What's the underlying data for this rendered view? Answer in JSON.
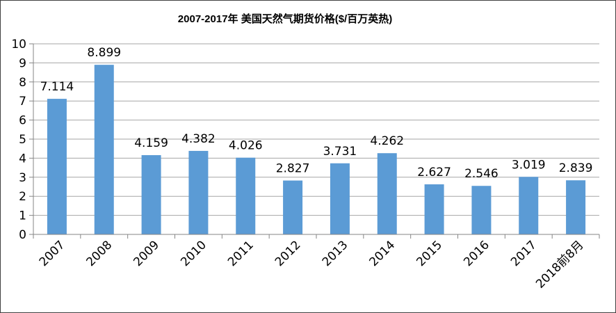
{
  "chart_data": {
    "type": "bar",
    "title": "2007-2017年 美国天然气期货价格($/百万英热)",
    "xlabel": "",
    "ylabel": "",
    "categories": [
      "2007",
      "2008",
      "2009",
      "2010",
      "2011",
      "2012",
      "2013",
      "2014",
      "2015",
      "2016",
      "2017",
      "2018前8月"
    ],
    "values": [
      7.114,
      8.899,
      4.159,
      4.382,
      4.026,
      2.827,
      3.731,
      4.262,
      2.627,
      2.546,
      3.019,
      2.839
    ],
    "value_labels": [
      "7.114",
      "8.899",
      "4.159",
      "4.382",
      "4.026",
      "2.827",
      "3.731",
      "4.262",
      "2.627",
      "2.546",
      "3.019",
      "2.839"
    ],
    "ylim": [
      0,
      10
    ],
    "yticks": [
      "0",
      "1",
      "2",
      "3",
      "4",
      "5",
      "6",
      "7",
      "8",
      "9",
      "10"
    ],
    "grid": true,
    "legend": "none",
    "bar_color": "#5B9BD5",
    "grid_color": "#A6A6A6"
  }
}
